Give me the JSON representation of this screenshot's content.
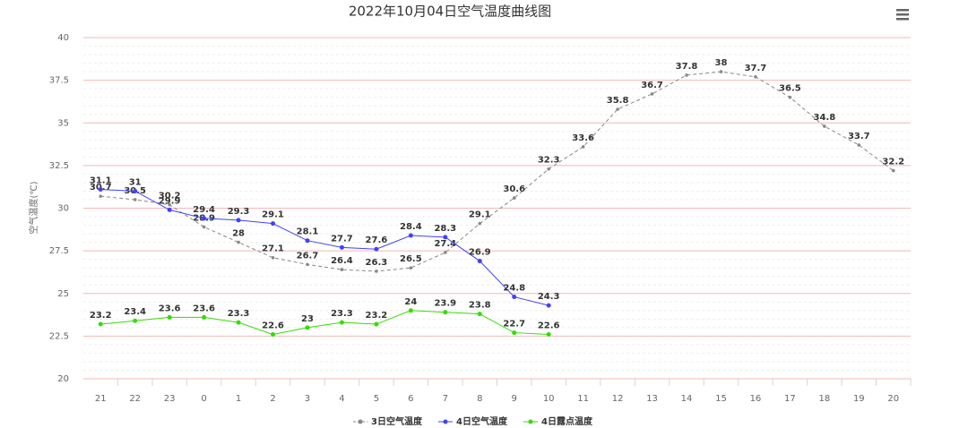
{
  "chart_data": {
    "type": "line",
    "title": "2022年10月04日空气温度曲线图",
    "y_label": "空气温度(℃)",
    "categories": [
      "21",
      "22",
      "23",
      "0",
      "1",
      "2",
      "3",
      "4",
      "5",
      "6",
      "7",
      "8",
      "9",
      "10",
      "11",
      "12",
      "13",
      "14",
      "15",
      "16",
      "17",
      "18",
      "19",
      "20"
    ],
    "series": [
      {
        "name": "3日空气温度",
        "color": "#888888",
        "dashed": true,
        "values": [
          30.7,
          30.5,
          30.2,
          28.9,
          28,
          27.1,
          26.7,
          26.4,
          26.3,
          26.5,
          27.4,
          29.1,
          30.6,
          32.3,
          33.6,
          35.8,
          36.7,
          37.8,
          38,
          37.7,
          36.5,
          34.8,
          33.7,
          32.2
        ]
      },
      {
        "name": "4日空气温度",
        "color": "#4040ff",
        "dashed": false,
        "values": [
          31.1,
          31,
          29.9,
          29.4,
          29.3,
          29.1,
          28.1,
          27.7,
          27.6,
          28.4,
          28.3,
          26.9,
          24.8,
          24.3,
          null,
          null,
          null,
          null,
          null,
          null,
          null,
          null,
          null,
          null
        ]
      },
      {
        "name": "4日露点温度",
        "color": "#33dd00",
        "dashed": false,
        "values": [
          23.2,
          23.4,
          23.6,
          23.6,
          23.3,
          22.6,
          23,
          23.3,
          23.2,
          24,
          23.9,
          23.8,
          22.7,
          22.6,
          null,
          null,
          null,
          null,
          null,
          null,
          null,
          null,
          null,
          null
        ]
      }
    ],
    "ylim": [
      20,
      40
    ],
    "yticks": [
      20,
      22.5,
      25,
      27.5,
      30,
      32.5,
      35,
      37.5,
      40
    ],
    "grid": true,
    "legend": "bottom"
  }
}
